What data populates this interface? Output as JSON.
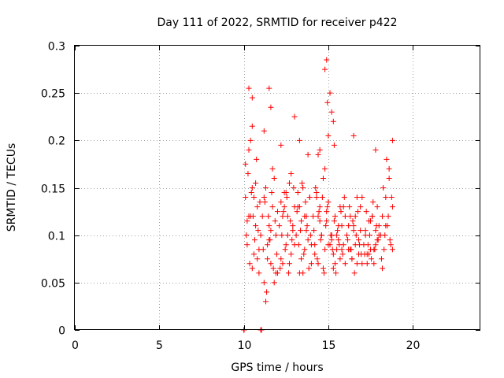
{
  "chart_data": {
    "type": "scatter",
    "title": "Day 111 of 2022, SRMTID for receiver p422",
    "xlabel": "GPS time / hours",
    "ylabel": "SRMTID / TECUs",
    "xlim": [
      0,
      24
    ],
    "ylim": [
      0,
      0.3
    ],
    "xticks": [
      0,
      5,
      10,
      15,
      20
    ],
    "xtick_labels": [
      "0",
      "5",
      "10",
      "15",
      "20"
    ],
    "yticks": [
      0,
      0.05,
      0.1,
      0.15,
      0.2,
      0.25,
      0.3
    ],
    "ytick_labels": [
      "0",
      "0.05",
      "0.1",
      "0.15",
      "0.2",
      "0.25",
      "0.3"
    ],
    "grid": true,
    "marker": "+",
    "color": "#ff0000",
    "series": [
      {
        "name": "SRMTID",
        "x": [
          10.0,
          10.02,
          11.0,
          11.05,
          10.1,
          10.2,
          10.3,
          10.4,
          10.5,
          10.6,
          10.7,
          10.8,
          10.9,
          11.0,
          10.15,
          10.25,
          10.35,
          10.45,
          10.55,
          10.65,
          10.75,
          10.85,
          10.95,
          10.1,
          10.3,
          10.5,
          10.7,
          10.9,
          10.2,
          10.4,
          10.6,
          10.8,
          11.1,
          11.2,
          11.3,
          11.4,
          11.5,
          11.6,
          11.7,
          11.8,
          11.9,
          12.0,
          11.15,
          11.25,
          11.35,
          11.45,
          11.55,
          11.65,
          11.75,
          11.85,
          11.95,
          11.2,
          11.4,
          11.6,
          11.8,
          12.0,
          11.3,
          11.5,
          11.7,
          11.9,
          12.1,
          12.2,
          12.3,
          12.4,
          12.5,
          12.6,
          12.7,
          12.8,
          12.9,
          13.0,
          12.15,
          12.25,
          12.35,
          12.45,
          12.55,
          12.65,
          12.75,
          12.85,
          12.95,
          12.2,
          12.4,
          12.6,
          12.8,
          13.0,
          12.3,
          12.5,
          12.7,
          12.9,
          13.1,
          13.2,
          13.3,
          13.4,
          13.5,
          13.6,
          13.7,
          13.8,
          13.9,
          14.0,
          13.15,
          13.25,
          13.35,
          13.45,
          13.55,
          13.65,
          13.75,
          13.85,
          13.95,
          13.2,
          13.4,
          13.6,
          13.8,
          14.0,
          13.3,
          13.5,
          13.7,
          13.9,
          14.1,
          14.2,
          14.3,
          14.4,
          14.5,
          14.6,
          14.7,
          14.8,
          14.9,
          15.0,
          14.15,
          14.25,
          14.35,
          14.45,
          14.55,
          14.65,
          14.75,
          14.85,
          14.95,
          14.2,
          14.4,
          14.6,
          14.8,
          15.0,
          14.3,
          14.5,
          14.7,
          14.9,
          15.1,
          15.2,
          15.3,
          15.4,
          15.5,
          15.6,
          15.7,
          15.8,
          15.9,
          16.0,
          15.15,
          15.25,
          15.35,
          15.45,
          15.55,
          15.65,
          15.75,
          15.85,
          15.95,
          15.2,
          15.4,
          15.6,
          15.8,
          16.0,
          15.3,
          15.5,
          15.7,
          15.9,
          16.1,
          16.2,
          16.3,
          16.4,
          16.5,
          16.6,
          16.7,
          16.8,
          16.9,
          17.0,
          16.15,
          16.25,
          16.35,
          16.45,
          16.55,
          16.65,
          16.75,
          16.85,
          16.95,
          16.2,
          16.4,
          16.6,
          16.8,
          17.0,
          16.3,
          16.5,
          16.7,
          16.9,
          17.1,
          17.2,
          17.3,
          17.4,
          17.5,
          17.6,
          17.7,
          17.8,
          17.9,
          18.0,
          17.15,
          17.25,
          17.35,
          17.45,
          17.55,
          17.65,
          17.75,
          17.85,
          17.95,
          17.2,
          17.4,
          17.6,
          17.8,
          18.0,
          17.3,
          17.5,
          17.7,
          17.9,
          18.1,
          18.2,
          18.3,
          18.4,
          18.5,
          18.6,
          18.7,
          18.8,
          18.15,
          18.25,
          18.35,
          18.45,
          18.55,
          18.65,
          18.75,
          18.2,
          18.4,
          18.6,
          18.8,
          10.3,
          10.5,
          11.5,
          11.6,
          13.0,
          14.8,
          14.9,
          14.95,
          15.1,
          15.2,
          15.3,
          10.5,
          11.2,
          12.2,
          13.3,
          15.0,
          15.35,
          17.8,
          18.8,
          16.5,
          14.5,
          14.4
        ],
        "y": [
          0.0,
          0.0,
          0.0,
          0.0,
          0.14,
          0.09,
          0.19,
          0.12,
          0.15,
          0.08,
          0.11,
          0.13,
          0.06,
          0.1,
          0.1,
          0.165,
          0.07,
          0.145,
          0.12,
          0.095,
          0.18,
          0.105,
          0.135,
          0.175,
          0.12,
          0.065,
          0.155,
          0.085,
          0.115,
          0.2,
          0.14,
          0.075,
          0.12,
          0.05,
          0.15,
          0.09,
          0.11,
          0.07,
          0.13,
          0.16,
          0.1,
          0.06,
          0.085,
          0.135,
          0.04,
          0.12,
          0.095,
          0.145,
          0.065,
          0.115,
          0.08,
          0.14,
          0.075,
          0.105,
          0.05,
          0.125,
          0.03,
          0.095,
          0.17,
          0.06,
          0.11,
          0.135,
          0.07,
          0.145,
          0.09,
          0.12,
          0.155,
          0.08,
          0.105,
          0.13,
          0.065,
          0.1,
          0.125,
          0.085,
          0.14,
          0.06,
          0.115,
          0.095,
          0.15,
          0.075,
          0.13,
          0.1,
          0.165,
          0.09,
          0.12,
          0.145,
          0.07,
          0.11,
          0.1,
          0.13,
          0.06,
          0.115,
          0.15,
          0.085,
          0.12,
          0.095,
          0.14,
          0.07,
          0.125,
          0.09,
          0.105,
          0.155,
          0.08,
          0.135,
          0.11,
          0.065,
          0.1,
          0.145,
          0.075,
          0.12,
          0.185,
          0.09,
          0.13,
          0.06,
          0.105,
          0.14,
          0.12,
          0.09,
          0.145,
          0.07,
          0.13,
          0.1,
          0.16,
          0.085,
          0.115,
          0.135,
          0.105,
          0.15,
          0.075,
          0.125,
          0.095,
          0.14,
          0.06,
          0.11,
          0.13,
          0.08,
          0.12,
          0.1,
          0.17,
          0.09,
          0.14,
          0.115,
          0.065,
          0.125,
          0.09,
          0.1,
          0.08,
          0.12,
          0.085,
          0.095,
          0.075,
          0.11,
          0.13,
          0.07,
          0.1,
          0.085,
          0.115,
          0.06,
          0.105,
          0.09,
          0.125,
          0.08,
          0.14,
          0.095,
          0.07,
          0.11,
          0.085,
          0.12,
          0.065,
          0.1,
          0.13,
          0.09,
          0.1,
          0.085,
          0.12,
          0.075,
          0.11,
          0.09,
          0.14,
          0.08,
          0.105,
          0.07,
          0.095,
          0.13,
          0.085,
          0.115,
          0.06,
          0.1,
          0.125,
          0.09,
          0.08,
          0.11,
          0.075,
          0.12,
          0.095,
          0.14,
          0.085,
          0.105,
          0.07,
          0.13,
          0.09,
          0.1,
          0.08,
          0.115,
          0.085,
          0.12,
          0.07,
          0.105,
          0.095,
          0.11,
          0.08,
          0.125,
          0.09,
          0.1,
          0.075,
          0.135,
          0.085,
          0.11,
          0.095,
          0.105,
          0.08,
          0.12,
          0.09,
          0.1,
          0.07,
          0.115,
          0.085,
          0.13,
          0.1,
          0.12,
          0.085,
          0.14,
          0.11,
          0.16,
          0.09,
          0.13,
          0.075,
          0.15,
          0.1,
          0.18,
          0.12,
          0.095,
          0.14,
          0.065,
          0.11,
          0.17,
          0.085,
          0.255,
          0.245,
          0.255,
          0.235,
          0.225,
          0.275,
          0.285,
          0.24,
          0.25,
          0.23,
          0.22,
          0.215,
          0.21,
          0.195,
          0.2,
          0.205,
          0.195,
          0.19,
          0.2,
          0.205,
          0.19,
          0.185
        ]
      }
    ]
  }
}
